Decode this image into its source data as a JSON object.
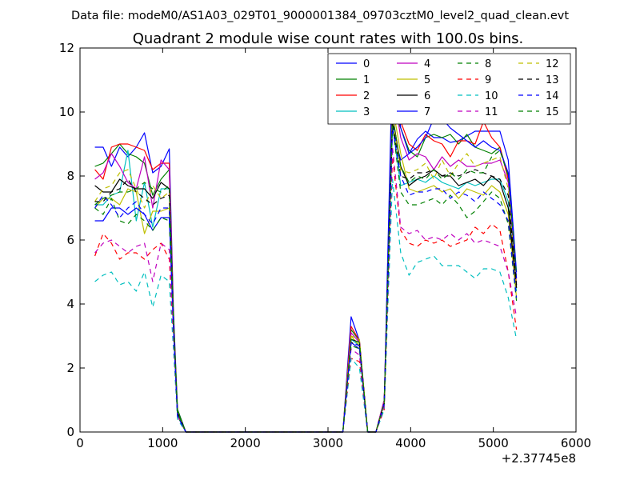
{
  "header": "Data file: modeM0/AS1A03_029T01_9000001384_09703cztM0_level2_quad_clean.evt",
  "chart_data": {
    "type": "line",
    "title": "Quadrant 2 module wise count rates with 100.0s bins.",
    "xlabel": "",
    "ylabel": "",
    "x_offset_label": "+2.37745e8",
    "xlim": [
      0,
      6000
    ],
    "ylim": [
      0,
      12
    ],
    "xticks": [
      0,
      1000,
      2000,
      3000,
      4000,
      5000,
      6000
    ],
    "yticks": [
      0,
      2,
      4,
      6,
      8,
      10,
      12
    ],
    "grid": false,
    "legend_position": "top-right",
    "x": [
      180,
      280,
      380,
      480,
      580,
      680,
      780,
      880,
      980,
      1080,
      1130,
      1180,
      1280,
      1380,
      1480,
      1580,
      1680,
      1780,
      1880,
      1980,
      2080,
      2180,
      2280,
      2380,
      2480,
      2580,
      2680,
      2780,
      2880,
      2980,
      3080,
      3180,
      3280,
      3380,
      3480,
      3580,
      3680,
      3780,
      3880,
      3980,
      4080,
      4180,
      4280,
      4380,
      4480,
      4580,
      4680,
      4780,
      4880,
      4980,
      5080,
      5180,
      5280
    ],
    "series": [
      {
        "name": "0",
        "color": "#0000ff",
        "dash": "solid",
        "values": [
          8.9,
          8.9,
          8.3,
          8.9,
          8.6,
          8.9,
          9.35,
          8.1,
          8.3,
          8.85,
          3.8,
          0.7,
          0,
          0,
          0,
          0,
          0,
          0,
          0,
          0,
          0,
          0,
          0,
          0,
          0,
          0,
          0,
          0,
          0,
          0,
          0,
          0,
          3.6,
          2.85,
          0,
          0,
          1.0,
          9.5,
          8.5,
          8.7,
          9.15,
          9.4,
          9.2,
          9.2,
          9.05,
          9.1,
          9.25,
          9.4,
          9.4,
          9.4,
          9.4,
          8.5,
          5.0
        ]
      },
      {
        "name": "1",
        "color": "#008000",
        "dash": "solid",
        "values": [
          8.3,
          8.4,
          8.7,
          9.0,
          8.7,
          8.6,
          8.4,
          7.4,
          7.9,
          8.2,
          3.6,
          0.7,
          0,
          0,
          0,
          0,
          0,
          0,
          0,
          0,
          0,
          0,
          0,
          0,
          0,
          0,
          0,
          0,
          0,
          0,
          0,
          0,
          3.2,
          2.85,
          0,
          0,
          1.0,
          10.1,
          9.5,
          8.8,
          8.6,
          9.2,
          9.3,
          9.2,
          9.3,
          9.0,
          9.3,
          8.9,
          8.8,
          8.7,
          8.9,
          8.0,
          4.5
        ]
      },
      {
        "name": "2",
        "color": "#ff0000",
        "dash": "solid",
        "values": [
          8.2,
          7.9,
          8.9,
          9.0,
          9.0,
          8.9,
          8.8,
          8.2,
          8.4,
          8.4,
          3.6,
          0.6,
          0,
          0,
          0,
          0,
          0,
          0,
          0,
          0,
          0,
          0,
          0,
          0,
          0,
          0,
          0,
          0,
          0,
          0,
          0,
          0,
          3.3,
          2.85,
          0,
          0,
          1.0,
          10.5,
          9.7,
          9.0,
          8.8,
          9.3,
          9.1,
          9.0,
          8.6,
          9.1,
          9.1,
          9.0,
          9.7,
          9.2,
          8.9,
          7.9,
          4.6
        ]
      },
      {
        "name": "3",
        "color": "#00bfbf",
        "dash": "solid",
        "values": [
          7.1,
          7.1,
          7.4,
          7.5,
          8.8,
          6.6,
          7.8,
          6.4,
          7.6,
          7.6,
          3.4,
          0.6,
          0,
          0,
          0,
          0,
          0,
          0,
          0,
          0,
          0,
          0,
          0,
          0,
          0,
          0,
          0,
          0,
          0,
          0,
          0,
          0,
          2.9,
          2.7,
          0,
          0,
          0.9,
          9.6,
          7.7,
          7.8,
          7.9,
          7.8,
          8.0,
          7.8,
          7.7,
          7.6,
          7.8,
          7.7,
          7.8,
          7.9,
          7.9,
          7.2,
          4.4
        ]
      },
      {
        "name": "4",
        "color": "#bf00bf",
        "dash": "solid",
        "values": [
          7.9,
          8.1,
          8.7,
          8.3,
          7.8,
          7.6,
          8.6,
          7.0,
          8.5,
          8.2,
          3.5,
          0.6,
          0,
          0,
          0,
          0,
          0,
          0,
          0,
          0,
          0,
          0,
          0,
          0,
          0,
          0,
          0,
          0,
          0,
          0,
          0,
          0,
          3.1,
          2.8,
          0,
          0,
          1.0,
          10.9,
          9.2,
          8.5,
          8.7,
          8.6,
          8.2,
          8.6,
          8.3,
          8.5,
          8.3,
          8.3,
          8.4,
          8.4,
          8.5,
          7.8,
          4.8
        ]
      },
      {
        "name": "5",
        "color": "#bfbf00",
        "dash": "solid",
        "values": [
          7.0,
          7.3,
          7.3,
          7.1,
          7.6,
          7.5,
          6.2,
          6.9,
          6.9,
          7.0,
          3.4,
          0.6,
          0,
          0,
          0,
          0,
          0,
          0,
          0,
          0,
          0,
          0,
          0,
          0,
          0,
          0,
          0,
          0,
          0,
          0,
          0,
          0,
          3.0,
          2.7,
          0,
          0,
          0.9,
          10.2,
          8.7,
          7.6,
          7.5,
          7.6,
          7.7,
          7.5,
          7.6,
          7.3,
          7.6,
          7.5,
          7.4,
          7.7,
          7.5,
          6.8,
          4.2
        ]
      },
      {
        "name": "6",
        "color": "#000000",
        "dash": "solid",
        "values": [
          7.7,
          7.5,
          7.5,
          7.9,
          7.7,
          7.6,
          7.6,
          7.3,
          7.8,
          7.6,
          3.5,
          0.6,
          0,
          0,
          0,
          0,
          0,
          0,
          0,
          0,
          0,
          0,
          0,
          0,
          0,
          0,
          0,
          0,
          0,
          0,
          0,
          0,
          2.9,
          2.8,
          0,
          0,
          0.9,
          9.9,
          8.3,
          7.7,
          7.9,
          8.0,
          8.2,
          8.0,
          8.0,
          7.7,
          7.8,
          7.9,
          7.7,
          8.0,
          7.8,
          7.0,
          4.5
        ]
      },
      {
        "name": "7",
        "color": "#0000ff",
        "dash": "solid",
        "values": [
          6.6,
          6.6,
          7.0,
          7.0,
          6.8,
          7.0,
          6.8,
          6.3,
          6.7,
          6.7,
          3.2,
          0.5,
          0,
          0,
          0,
          0,
          0,
          0,
          0,
          0,
          0,
          0,
          0,
          0,
          0,
          0,
          0,
          0,
          0,
          0,
          0,
          0,
          2.8,
          2.6,
          0,
          0,
          0.9,
          11.7,
          9.5,
          8.7,
          8.9,
          9.2,
          9.8,
          9.8,
          9.5,
          9.3,
          9.1,
          8.9,
          9.1,
          8.9,
          8.8,
          8.1,
          4.8
        ]
      },
      {
        "name": "8",
        "color": "#008000",
        "dash": "dashed",
        "values": [
          7.0,
          6.8,
          7.3,
          6.6,
          6.5,
          6.8,
          6.6,
          6.3,
          6.7,
          6.6,
          3.3,
          0.5,
          0,
          0,
          0,
          0,
          0,
          0,
          0,
          0,
          0,
          0,
          0,
          0,
          0,
          0,
          0,
          0,
          0,
          0,
          0,
          0,
          2.7,
          2.6,
          0,
          0,
          0.8,
          9.6,
          7.5,
          7.1,
          7.1,
          7.2,
          7.3,
          7.1,
          7.4,
          7.1,
          6.7,
          6.9,
          7.2,
          7.5,
          7.3,
          6.5,
          4.1
        ]
      },
      {
        "name": "9",
        "color": "#ff0000",
        "dash": "dashed",
        "values": [
          5.5,
          6.2,
          5.9,
          5.4,
          5.6,
          5.6,
          5.4,
          5.7,
          5.9,
          5.4,
          2.9,
          0.5,
          0,
          0,
          0,
          0,
          0,
          0,
          0,
          0,
          0,
          0,
          0,
          0,
          0,
          0,
          0,
          0,
          0,
          0,
          0,
          0,
          2.3,
          2.2,
          0,
          0,
          0.7,
          8.6,
          6.3,
          5.9,
          5.8,
          6.0,
          5.9,
          6.0,
          5.8,
          5.9,
          6.0,
          6.4,
          6.2,
          6.5,
          6.3,
          5.0,
          3.2
        ]
      },
      {
        "name": "10",
        "color": "#00bfbf",
        "dash": "dashed",
        "values": [
          4.7,
          4.9,
          5.0,
          4.6,
          4.7,
          4.4,
          5.0,
          3.9,
          4.9,
          4.7,
          2.6,
          0.4,
          0,
          0,
          0,
          0,
          0,
          0,
          0,
          0,
          0,
          0,
          0,
          0,
          0,
          0,
          0,
          0,
          0,
          0,
          0,
          0,
          2.3,
          2.0,
          0,
          0,
          0.7,
          7.9,
          5.6,
          4.9,
          5.3,
          5.4,
          5.5,
          5.2,
          5.2,
          5.2,
          5.0,
          4.8,
          5.1,
          5.1,
          5.0,
          4.2,
          2.9
        ]
      },
      {
        "name": "11",
        "color": "#bf00bf",
        "dash": "dashed",
        "values": [
          5.6,
          5.9,
          6.0,
          5.8,
          5.6,
          5.8,
          5.9,
          4.7,
          5.9,
          5.7,
          3.0,
          0.5,
          0,
          0,
          0,
          0,
          0,
          0,
          0,
          0,
          0,
          0,
          0,
          0,
          0,
          0,
          0,
          0,
          0,
          0,
          0,
          0,
          2.6,
          2.4,
          0,
          0,
          0.8,
          8.9,
          6.4,
          6.2,
          6.3,
          6.0,
          6.1,
          6.0,
          6.2,
          6.0,
          6.2,
          5.9,
          6.0,
          5.9,
          5.8,
          5.0,
          3.6
        ]
      },
      {
        "name": "12",
        "color": "#bfbf00",
        "dash": "dashed",
        "values": [
          7.2,
          7.6,
          7.7,
          8.1,
          8.2,
          7.6,
          7.0,
          7.7,
          7.3,
          7.5,
          3.4,
          0.6,
          0,
          0,
          0,
          0,
          0,
          0,
          0,
          0,
          0,
          0,
          0,
          0,
          0,
          0,
          0,
          0,
          0,
          0,
          0,
          0,
          3.0,
          2.9,
          0,
          0,
          0.9,
          9.8,
          8.2,
          8.1,
          8.2,
          8.4,
          7.9,
          8.5,
          8.0,
          8.4,
          8.7,
          8.3,
          8.4,
          8.5,
          8.6,
          7.6,
          4.5
        ]
      },
      {
        "name": "13",
        "color": "#000000",
        "dash": "dashed",
        "values": [
          7.2,
          7.2,
          7.5,
          7.6,
          7.9,
          7.5,
          7.3,
          7.1,
          7.3,
          7.4,
          3.4,
          0.6,
          0,
          0,
          0,
          0,
          0,
          0,
          0,
          0,
          0,
          0,
          0,
          0,
          0,
          0,
          0,
          0,
          0,
          0,
          0,
          0,
          2.8,
          2.7,
          0,
          0,
          0.9,
          9.7,
          8.0,
          7.9,
          8.1,
          8.1,
          8.2,
          8.0,
          8.1,
          8.0,
          8.1,
          8.2,
          8.1,
          8.0,
          7.9,
          7.4,
          4.6
        ]
      },
      {
        "name": "14",
        "color": "#0000ff",
        "dash": "dashed",
        "values": [
          7.0,
          7.4,
          7.1,
          6.7,
          7.0,
          7.2,
          6.8,
          6.5,
          7.0,
          7.0,
          3.3,
          0.5,
          0,
          0,
          0,
          0,
          0,
          0,
          0,
          0,
          0,
          0,
          0,
          0,
          0,
          0,
          0,
          0,
          0,
          0,
          0,
          0,
          2.8,
          2.7,
          0,
          0,
          0.9,
          9.5,
          8.0,
          7.4,
          7.5,
          7.5,
          7.6,
          7.6,
          7.3,
          7.5,
          7.4,
          7.2,
          7.5,
          7.3,
          7.1,
          6.6,
          4.2
        ]
      },
      {
        "name": "15",
        "color": "#008000",
        "dash": "dashed",
        "values": [
          7.1,
          7.3,
          7.4,
          7.5,
          7.5,
          7.6,
          7.8,
          7.6,
          7.5,
          7.7,
          3.5,
          0.6,
          0,
          0,
          0,
          0,
          0,
          0,
          0,
          0,
          0,
          0,
          0,
          0,
          0,
          0,
          0,
          0,
          0,
          0,
          0,
          0,
          2.9,
          2.8,
          0,
          0,
          0.9,
          9.9,
          8.3,
          7.8,
          8.0,
          7.9,
          8.2,
          7.9,
          8.1,
          7.9,
          8.2,
          8.1,
          8.1,
          8.6,
          8.8,
          8.0,
          4.9
        ]
      }
    ]
  }
}
